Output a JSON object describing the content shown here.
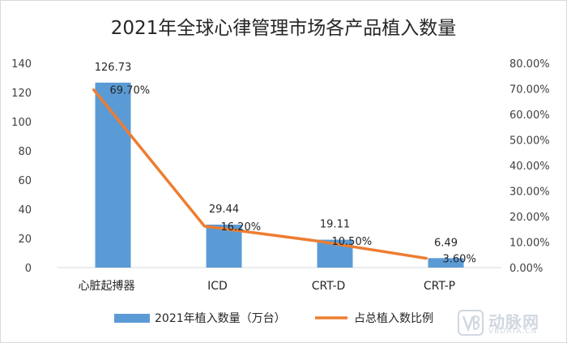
{
  "chart_data": {
    "type": "bar",
    "title": "2021年全球心律管理市场各产品植入数量",
    "categories": [
      "心脏起搏器",
      "ICD",
      "CRT-D",
      "CRT-P"
    ],
    "series": [
      {
        "name": "2021年植入数量（万台）",
        "type": "bar",
        "axis": "left",
        "values": [
          126.73,
          29.44,
          19.11,
          6.49
        ],
        "labels": [
          "126.73",
          "29.44",
          "19.11",
          "6.49"
        ],
        "color": "#5b9bd5"
      },
      {
        "name": "占总植入数比例",
        "type": "line",
        "axis": "right",
        "values": [
          0.697,
          0.162,
          0.105,
          0.036
        ],
        "labels": [
          "69.70%",
          "16.20%",
          "10.50%",
          "3.60%"
        ],
        "color": "#ed7d31"
      }
    ],
    "y_left": {
      "ylim": [
        0,
        140
      ],
      "ticks": [
        "0",
        "20",
        "40",
        "60",
        "80",
        "100",
        "120",
        "140"
      ]
    },
    "y_right": {
      "ylim": [
        0,
        0.8
      ],
      "ticks": [
        "0.00%",
        "10.00%",
        "20.00%",
        "30.00%",
        "40.00%",
        "50.00%",
        "60.00%",
        "70.00%",
        "80.00%"
      ]
    },
    "grid": false,
    "legend_position": "bottom"
  },
  "watermark": {
    "brand": "动脉网",
    "site": "VBDATA.CN"
  }
}
